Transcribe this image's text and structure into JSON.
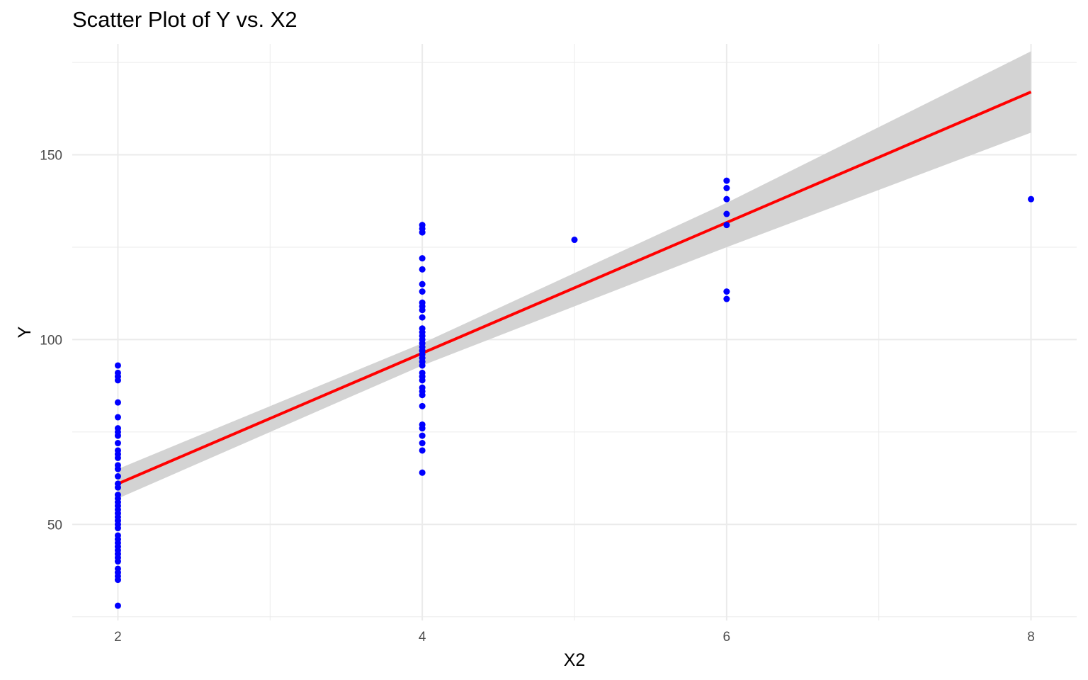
{
  "chart_data": {
    "type": "scatter",
    "title": "Scatter Plot of Y vs. X2",
    "xlabel": "X2",
    "ylabel": "Y",
    "xlim": [
      1.7,
      8.3
    ],
    "ylim": [
      24,
      180
    ],
    "x_ticks": [
      2,
      4,
      6,
      8
    ],
    "x_tick_labels": [
      "2",
      "4",
      "6",
      "8"
    ],
    "x_minor_ticks": [
      3,
      5,
      7
    ],
    "y_ticks": [
      50,
      100,
      150
    ],
    "y_tick_labels": [
      "50",
      "100",
      "150"
    ],
    "y_minor_ticks": [
      25,
      75,
      125,
      175
    ],
    "grid": true,
    "legend": "none",
    "colors": {
      "points": "#0000ff",
      "fit_line": "#ff0000",
      "confidence_band": "#d3d3d3",
      "grid": "#ebebeb"
    },
    "points": [
      {
        "x": 2,
        "y": 28
      },
      {
        "x": 2,
        "y": 35
      },
      {
        "x": 2,
        "y": 36
      },
      {
        "x": 2,
        "y": 37
      },
      {
        "x": 2,
        "y": 38
      },
      {
        "x": 2,
        "y": 40
      },
      {
        "x": 2,
        "y": 41
      },
      {
        "x": 2,
        "y": 42
      },
      {
        "x": 2,
        "y": 43
      },
      {
        "x": 2,
        "y": 44
      },
      {
        "x": 2,
        "y": 45
      },
      {
        "x": 2,
        "y": 46
      },
      {
        "x": 2,
        "y": 47
      },
      {
        "x": 2,
        "y": 49
      },
      {
        "x": 2,
        "y": 50
      },
      {
        "x": 2,
        "y": 51
      },
      {
        "x": 2,
        "y": 52
      },
      {
        "x": 2,
        "y": 53
      },
      {
        "x": 2,
        "y": 54
      },
      {
        "x": 2,
        "y": 55
      },
      {
        "x": 2,
        "y": 56
      },
      {
        "x": 2,
        "y": 57
      },
      {
        "x": 2,
        "y": 58
      },
      {
        "x": 2,
        "y": 60
      },
      {
        "x": 2,
        "y": 61
      },
      {
        "x": 2,
        "y": 63
      },
      {
        "x": 2,
        "y": 65
      },
      {
        "x": 2,
        "y": 66
      },
      {
        "x": 2,
        "y": 68
      },
      {
        "x": 2,
        "y": 69
      },
      {
        "x": 2,
        "y": 70
      },
      {
        "x": 2,
        "y": 72
      },
      {
        "x": 2,
        "y": 74
      },
      {
        "x": 2,
        "y": 75
      },
      {
        "x": 2,
        "y": 76
      },
      {
        "x": 2,
        "y": 79
      },
      {
        "x": 2,
        "y": 83
      },
      {
        "x": 2,
        "y": 89
      },
      {
        "x": 2,
        "y": 90
      },
      {
        "x": 2,
        "y": 91
      },
      {
        "x": 2,
        "y": 93
      },
      {
        "x": 4,
        "y": 64
      },
      {
        "x": 4,
        "y": 70
      },
      {
        "x": 4,
        "y": 72
      },
      {
        "x": 4,
        "y": 74
      },
      {
        "x": 4,
        "y": 76
      },
      {
        "x": 4,
        "y": 77
      },
      {
        "x": 4,
        "y": 82
      },
      {
        "x": 4,
        "y": 85
      },
      {
        "x": 4,
        "y": 86
      },
      {
        "x": 4,
        "y": 87
      },
      {
        "x": 4,
        "y": 89
      },
      {
        "x": 4,
        "y": 90
      },
      {
        "x": 4,
        "y": 91
      },
      {
        "x": 4,
        "y": 93
      },
      {
        "x": 4,
        "y": 94
      },
      {
        "x": 4,
        "y": 95
      },
      {
        "x": 4,
        "y": 96
      },
      {
        "x": 4,
        "y": 97
      },
      {
        "x": 4,
        "y": 98
      },
      {
        "x": 4,
        "y": 99
      },
      {
        "x": 4,
        "y": 100
      },
      {
        "x": 4,
        "y": 101
      },
      {
        "x": 4,
        "y": 102
      },
      {
        "x": 4,
        "y": 103
      },
      {
        "x": 4,
        "y": 106
      },
      {
        "x": 4,
        "y": 108
      },
      {
        "x": 4,
        "y": 109
      },
      {
        "x": 4,
        "y": 110
      },
      {
        "x": 4,
        "y": 113
      },
      {
        "x": 4,
        "y": 115
      },
      {
        "x": 4,
        "y": 119
      },
      {
        "x": 4,
        "y": 122
      },
      {
        "x": 4,
        "y": 129
      },
      {
        "x": 4,
        "y": 130
      },
      {
        "x": 4,
        "y": 131
      },
      {
        "x": 5,
        "y": 127
      },
      {
        "x": 6,
        "y": 111
      },
      {
        "x": 6,
        "y": 113
      },
      {
        "x": 6,
        "y": 131
      },
      {
        "x": 6,
        "y": 134
      },
      {
        "x": 6,
        "y": 138
      },
      {
        "x": 6,
        "y": 141
      },
      {
        "x": 6,
        "y": 143
      },
      {
        "x": 8,
        "y": 138
      }
    ],
    "fit_line": {
      "x": [
        2,
        8
      ],
      "y": [
        61,
        167
      ]
    },
    "confidence_band": {
      "x": [
        2,
        4,
        6,
        8
      ],
      "upper": [
        65,
        99,
        137,
        178
      ],
      "lower": [
        57,
        93,
        125,
        156
      ]
    }
  }
}
